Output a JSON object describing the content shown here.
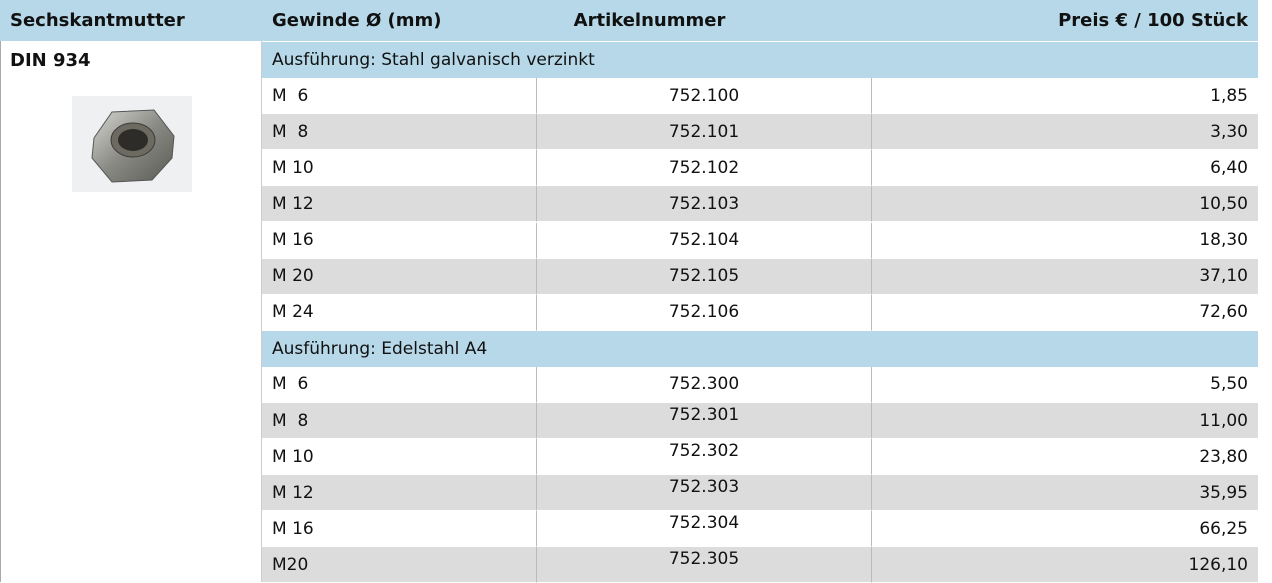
{
  "header": [
    "Sechskantmutter",
    "Gewinde Ø (mm)",
    "Artikelnummer",
    "Preis € / 100 Stück"
  ],
  "product": {
    "standard": "DIN 934"
  },
  "sections": [
    {
      "title": "Ausführung: Stahl galvanisch verzinkt",
      "rows": [
        [
          "M  6",
          "752.100",
          "1,85"
        ],
        [
          "M  8",
          "752.101",
          "3,30"
        ],
        [
          "M 10",
          "752.102",
          "6,40"
        ],
        [
          "M 12",
          "752.103",
          "10,50"
        ],
        [
          "M 16",
          "752.104",
          "18,30"
        ],
        [
          "M 20",
          "752.105",
          "37,10"
        ],
        [
          "M 24",
          "752.106",
          "72,60"
        ]
      ]
    },
    {
      "title": "Ausführung: Edelstahl A4",
      "rows": [
        [
          "M  6",
          "752.300",
          "5,50"
        ],
        [
          "M  8",
          "752.301",
          "11,00"
        ],
        [
          "M 10",
          "752.302",
          "23,80"
        ],
        [
          "M 12",
          "752.303",
          "35,95"
        ],
        [
          "M 16",
          "752.304",
          "66,25"
        ],
        [
          "M20",
          "752.305",
          "126,10"
        ]
      ]
    }
  ]
}
